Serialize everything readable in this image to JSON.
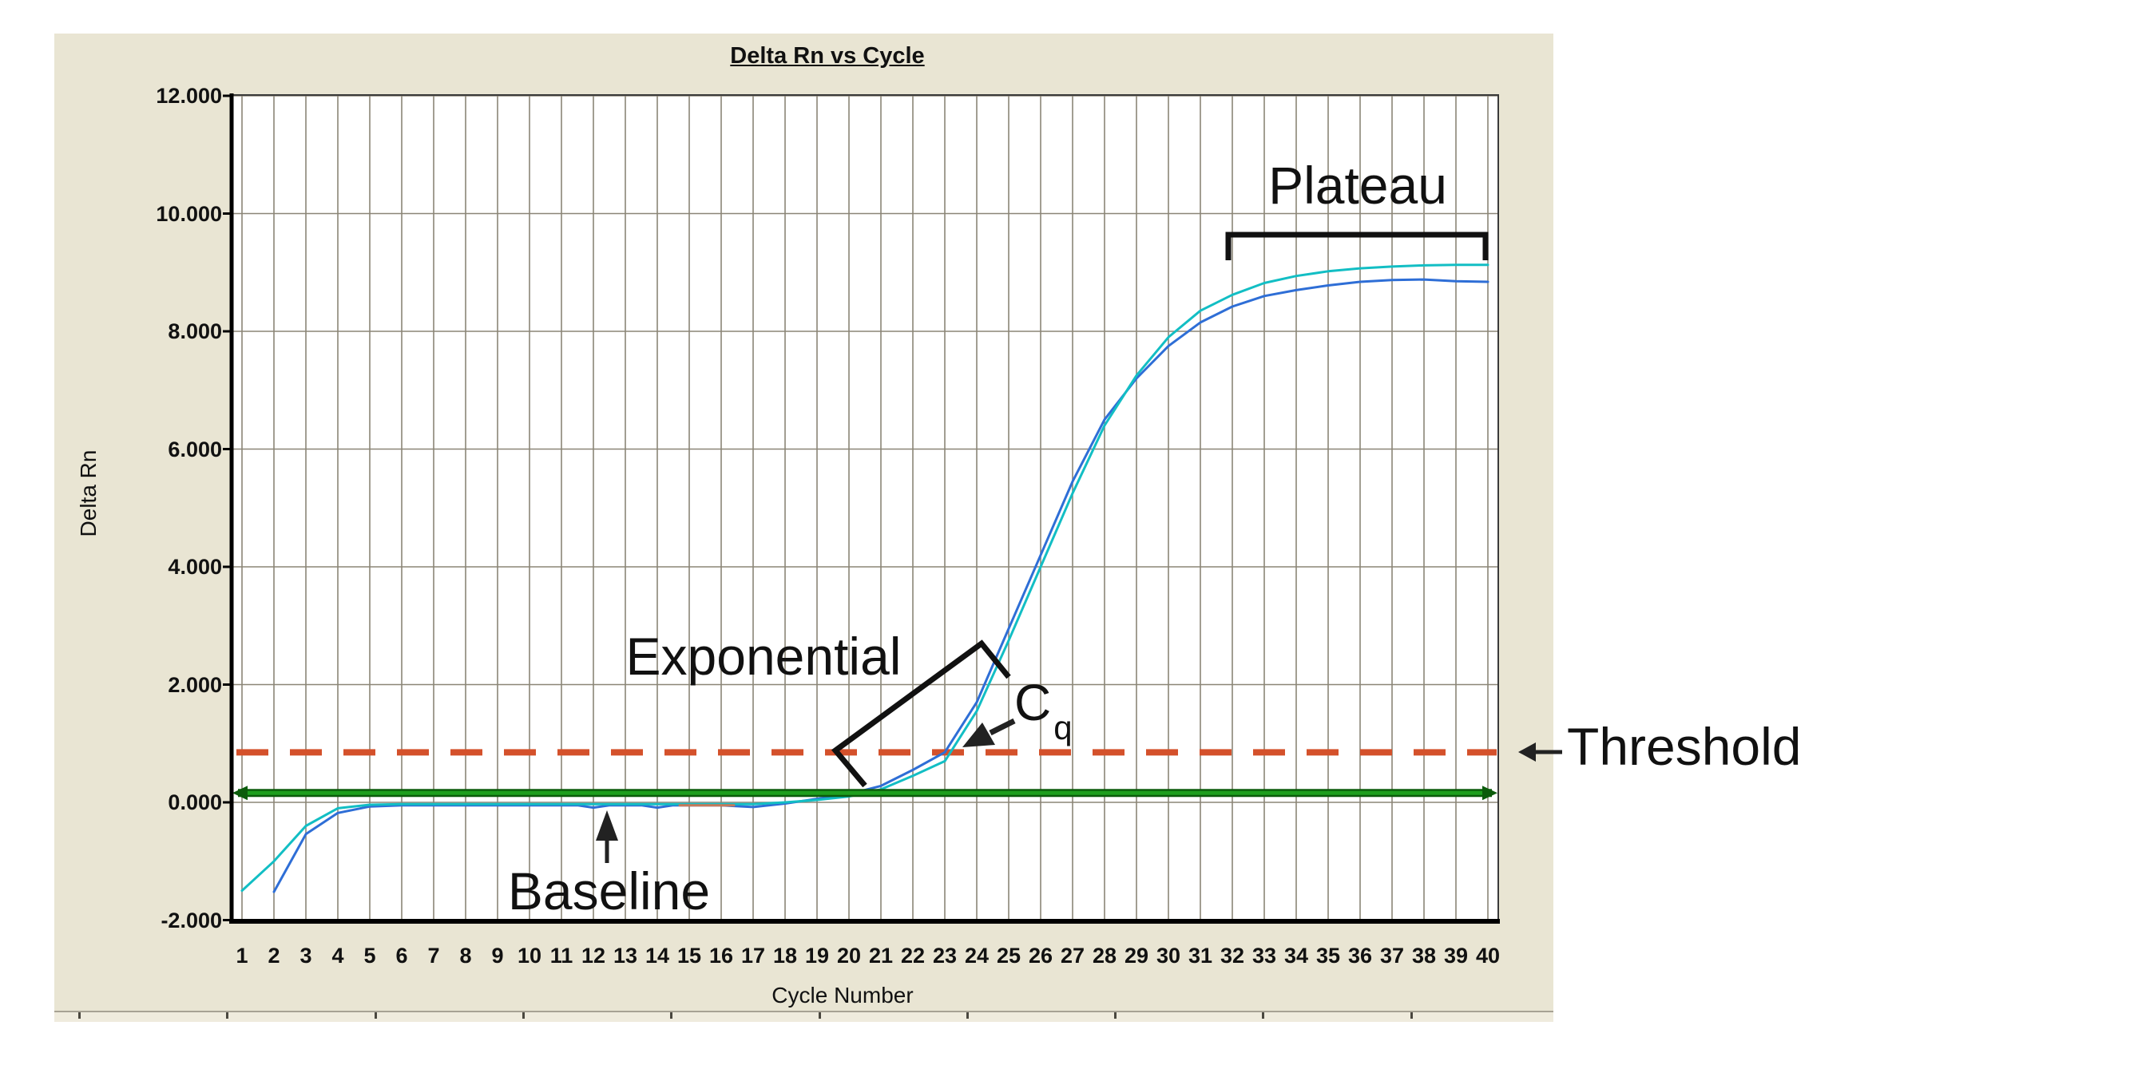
{
  "page": {
    "background": "#ffffff"
  },
  "panel": {
    "background": "#E9E5D3",
    "plot_background": "#ffffff",
    "gridline_color": "#8B8577"
  },
  "chart_data": {
    "type": "line",
    "title": "Delta Rn vs Cycle",
    "xlabel": "Cycle Number",
    "ylabel": "Delta Rn",
    "xlim": [
      1,
      40
    ],
    "ylim": [
      -2,
      12
    ],
    "grid": "on",
    "legend": "none",
    "x_ticks": [
      1,
      2,
      3,
      4,
      5,
      6,
      7,
      8,
      9,
      10,
      11,
      12,
      13,
      14,
      15,
      16,
      17,
      18,
      19,
      20,
      21,
      22,
      23,
      24,
      25,
      26,
      27,
      28,
      29,
      30,
      31,
      32,
      33,
      34,
      35,
      36,
      37,
      38,
      39,
      40
    ],
    "y_ticks": [
      {
        "value": 12,
        "label": "12.000"
      },
      {
        "value": 10,
        "label": "10.000"
      },
      {
        "value": 8,
        "label": "8.000"
      },
      {
        "value": 6,
        "label": "6.000"
      },
      {
        "value": 4,
        "label": "4.000"
      },
      {
        "value": 2,
        "label": "2.000"
      },
      {
        "value": 0,
        "label": "0.000"
      },
      {
        "value": -2,
        "label": "-2.000"
      }
    ],
    "threshold_line": {
      "value": 0.85,
      "color": "#D4512B",
      "style": "dashed"
    },
    "baseline_line": {
      "value": 0.16,
      "color": "#1E9E1E",
      "edge_color": "#0B5B0B",
      "style": "solid-double-arrow"
    },
    "cq_cycle": 23,
    "series": [
      {
        "name": "amplification-curve-blue",
        "color": "#2E6ED6",
        "points": [
          [
            2,
            -1.52
          ],
          [
            3,
            -0.54
          ],
          [
            4,
            -0.18
          ],
          [
            5,
            -0.07
          ],
          [
            6,
            -0.05
          ],
          [
            8,
            -0.05
          ],
          [
            10,
            -0.05
          ],
          [
            11.5,
            -0.05
          ],
          [
            12,
            -0.09
          ],
          [
            12.5,
            -0.05
          ],
          [
            13.5,
            -0.05
          ],
          [
            14,
            -0.09
          ],
          [
            14.5,
            -0.05
          ],
          [
            16,
            -0.05
          ],
          [
            17,
            -0.08
          ],
          [
            18,
            -0.02
          ],
          [
            19,
            0.06
          ],
          [
            20,
            0.14
          ],
          [
            21,
            0.28
          ],
          [
            22,
            0.55
          ],
          [
            23,
            0.85
          ],
          [
            24,
            1.7
          ],
          [
            25,
            2.95
          ],
          [
            26,
            4.2
          ],
          [
            27,
            5.45
          ],
          [
            28,
            6.5
          ],
          [
            29,
            7.2
          ],
          [
            30,
            7.75
          ],
          [
            31,
            8.15
          ],
          [
            32,
            8.42
          ],
          [
            33,
            8.6
          ],
          [
            34,
            8.7
          ],
          [
            35,
            8.78
          ],
          [
            36,
            8.84
          ],
          [
            37,
            8.87
          ],
          [
            38,
            8.88
          ],
          [
            39,
            8.85
          ],
          [
            40,
            8.84
          ]
        ]
      },
      {
        "name": "amplification-curve-cyan",
        "color": "#12BEC4",
        "points": [
          [
            1,
            -1.5
          ],
          [
            2,
            -1.0
          ],
          [
            3,
            -0.4
          ],
          [
            4,
            -0.1
          ],
          [
            5,
            -0.04
          ],
          [
            6,
            -0.03
          ],
          [
            8,
            -0.03
          ],
          [
            10,
            -0.03
          ],
          [
            12,
            -0.03
          ],
          [
            14,
            -0.03
          ],
          [
            16,
            -0.03
          ],
          [
            17,
            -0.03
          ],
          [
            18,
            0.0
          ],
          [
            19,
            0.04
          ],
          [
            20,
            0.1
          ],
          [
            21,
            0.22
          ],
          [
            22,
            0.45
          ],
          [
            23,
            0.7
          ],
          [
            24,
            1.55
          ],
          [
            25,
            2.75
          ],
          [
            26,
            4.0
          ],
          [
            27,
            5.25
          ],
          [
            28,
            6.4
          ],
          [
            29,
            7.25
          ],
          [
            30,
            7.9
          ],
          [
            31,
            8.35
          ],
          [
            32,
            8.62
          ],
          [
            33,
            8.82
          ],
          [
            34,
            8.94
          ],
          [
            35,
            9.02
          ],
          [
            36,
            9.07
          ],
          [
            37,
            9.1
          ],
          [
            38,
            9.12
          ],
          [
            39,
            9.13
          ],
          [
            40,
            9.13
          ]
        ]
      },
      {
        "name": "baseline-gap-segment",
        "color": "#C8795A",
        "points": [
          [
            14.7,
            -0.05
          ],
          [
            16.4,
            -0.05
          ]
        ]
      }
    ],
    "annotations": {
      "plateau": {
        "text": "Plateau"
      },
      "exponential": {
        "text": "Exponential"
      },
      "cq": {
        "text": "C",
        "sub": "q"
      },
      "baseline": {
        "text": "Baseline"
      },
      "threshold": {
        "text": "Threshold"
      }
    }
  }
}
